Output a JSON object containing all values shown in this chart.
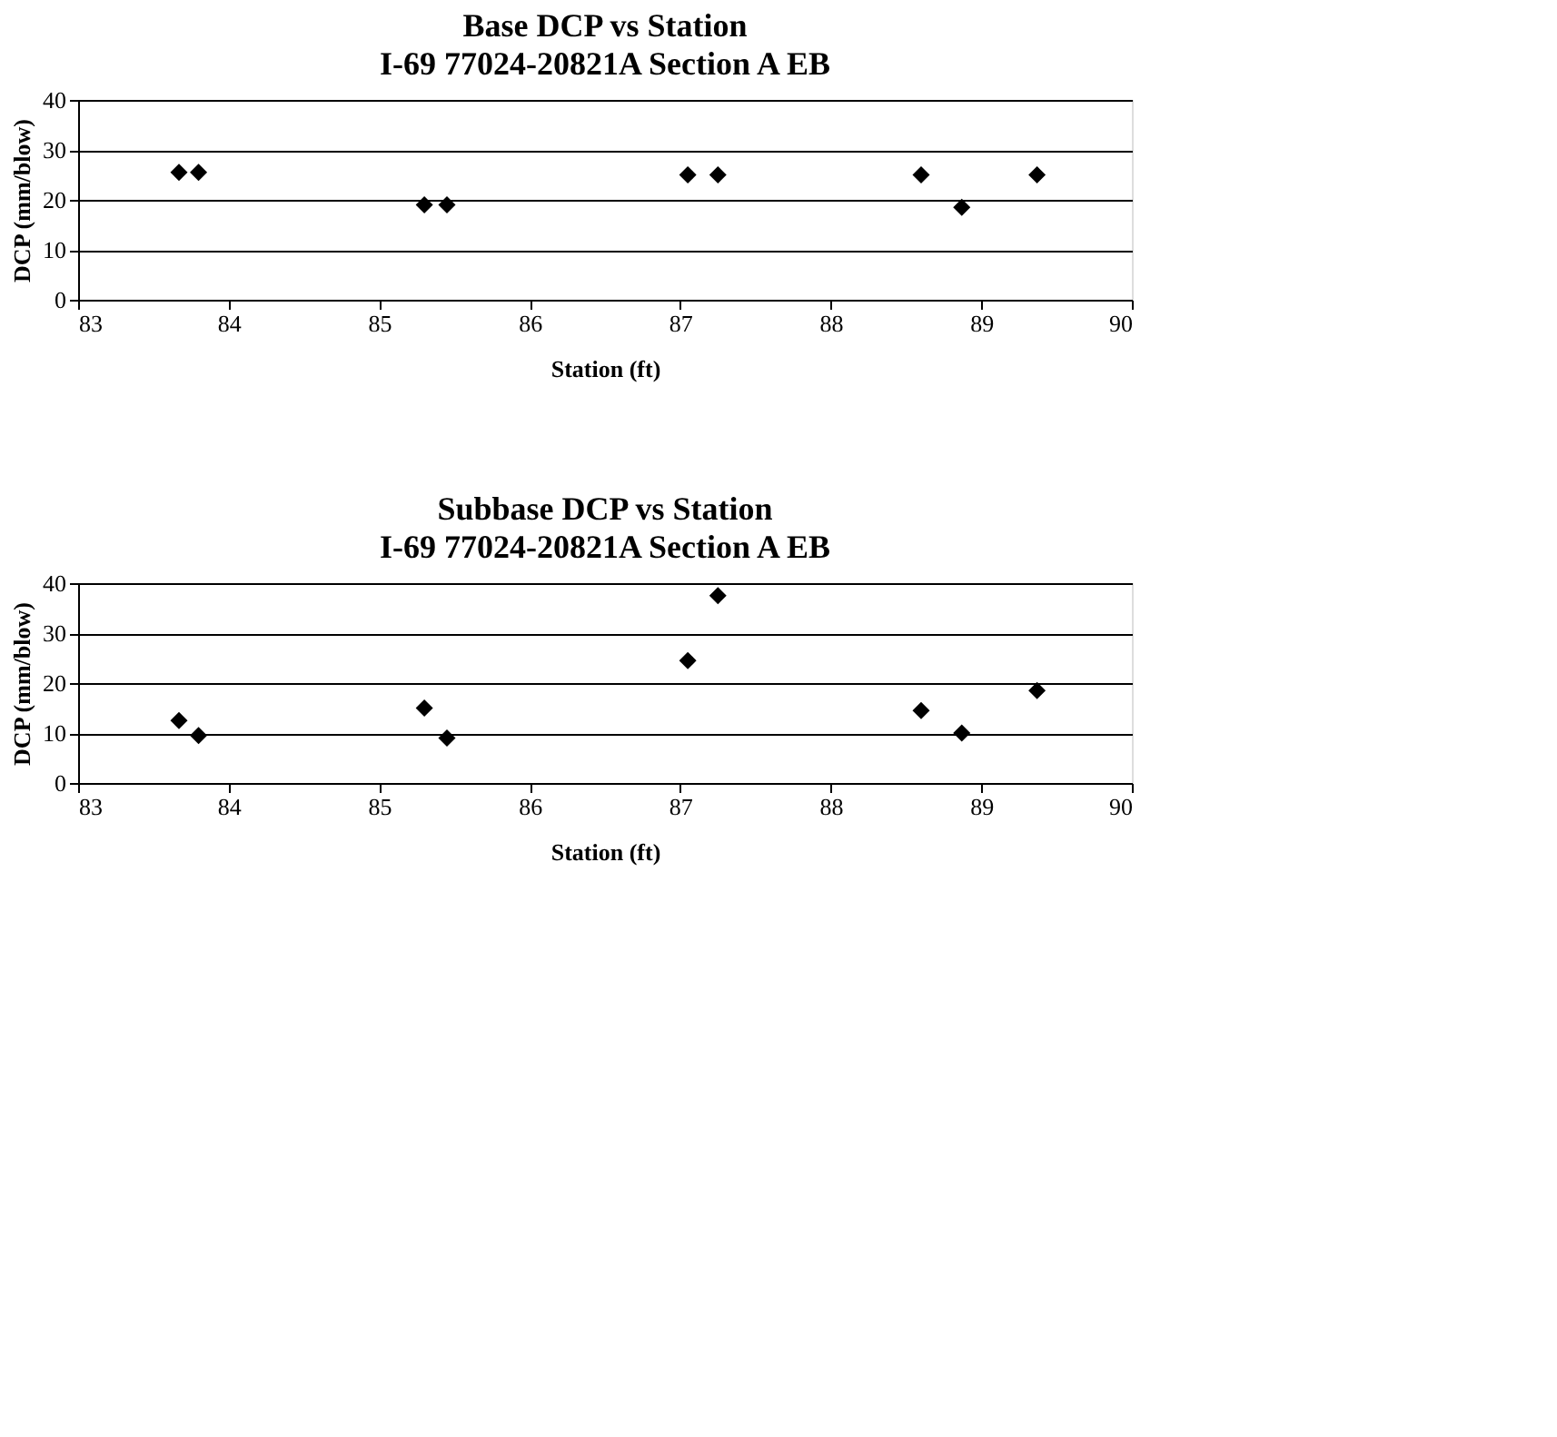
{
  "chart_data": [
    {
      "type": "scatter",
      "title": "Base DCP vs Station",
      "subtitle": "I-69 77024-20821A Section A EB",
      "xlabel": "Station (ft)",
      "ylabel": "DCP (mm/blow)",
      "x": [
        83.67,
        83.8,
        85.3,
        85.45,
        87.05,
        87.25,
        88.6,
        88.87,
        89.37
      ],
      "series": [
        {
          "color": "#000000",
          "values": [
            25.5,
            25.5,
            19,
            19,
            25,
            25,
            25,
            18.5,
            25
          ]
        }
      ],
      "xlim": [
        83,
        90
      ],
      "xticks": [
        83,
        84,
        85,
        86,
        87,
        88,
        89,
        90
      ],
      "ylim": [
        0,
        40
      ],
      "yticks": [
        0,
        10,
        20,
        30,
        40
      ],
      "grid": "y",
      "marker": "diamond",
      "legend": false
    },
    {
      "type": "scatter",
      "title": "Subbase DCP vs Station",
      "subtitle": "I-69 77024-20821A Section A EB",
      "xlabel": "Station (ft)",
      "ylabel": "DCP (mm/blow)",
      "x": [
        83.67,
        83.8,
        85.3,
        85.45,
        87.05,
        87.25,
        88.6,
        88.87,
        89.37
      ],
      "series": [
        {
          "color": "#000000",
          "values": [
            12.5,
            9.5,
            15,
            9,
            24.5,
            37.5,
            14.5,
            10,
            18.5
          ]
        }
      ],
      "xlim": [
        83,
        90
      ],
      "xticks": [
        83,
        84,
        85,
        86,
        87,
        88,
        89,
        90
      ],
      "ylim": [
        0,
        40
      ],
      "yticks": [
        0,
        10,
        20,
        30,
        40
      ],
      "grid": "y",
      "marker": "diamond",
      "legend": false
    }
  ]
}
